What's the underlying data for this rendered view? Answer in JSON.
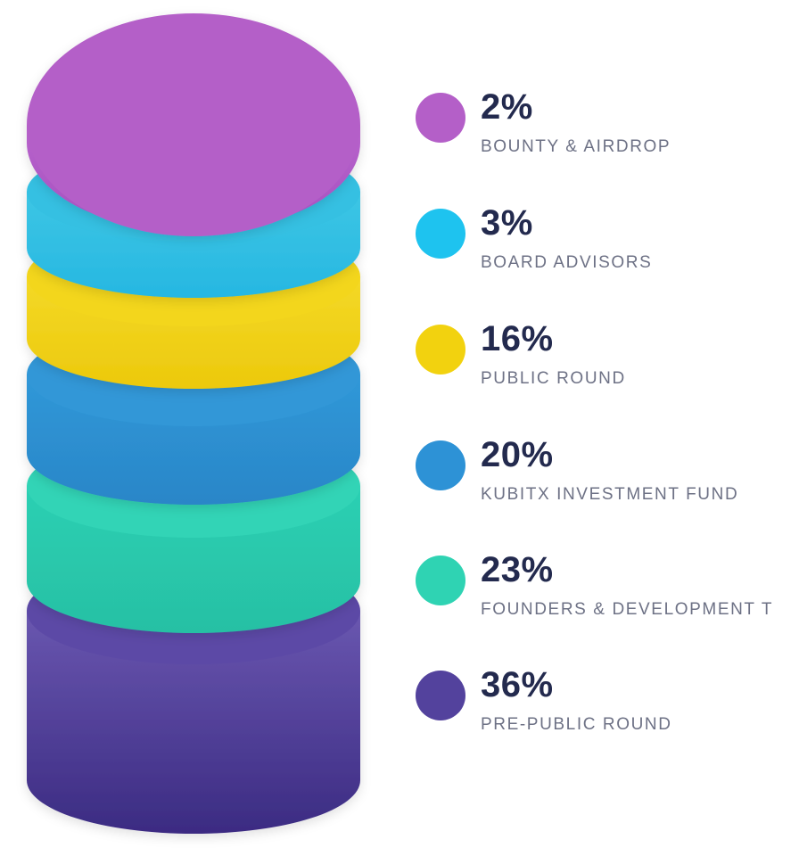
{
  "chart_data": {
    "type": "pie",
    "title": "",
    "series": [
      {
        "label": "BOUNTY & AIRDROP",
        "value": 2,
        "value_text": "2%",
        "color": "#b45fc8"
      },
      {
        "label": "BOARD ADVISORS",
        "value": 3,
        "value_text": "3%",
        "color": "#2ec4ec"
      },
      {
        "label": "PUBLIC ROUND",
        "value": 16,
        "value_text": "16%",
        "color": "#f1d214"
      },
      {
        "label": "KUBITX INVESTMENT FUND",
        "value": 20,
        "value_text": "20%",
        "color": "#2f94d6"
      },
      {
        "label": "FOUNDERS & DEVELOPMENT T",
        "value": 23,
        "value_text": "23%",
        "color": "#2fd2b4"
      },
      {
        "label": "PRE-PUBLIC ROUND",
        "value": 36,
        "value_text": "36%",
        "color": "#55449f"
      }
    ],
    "legend": "right"
  }
}
